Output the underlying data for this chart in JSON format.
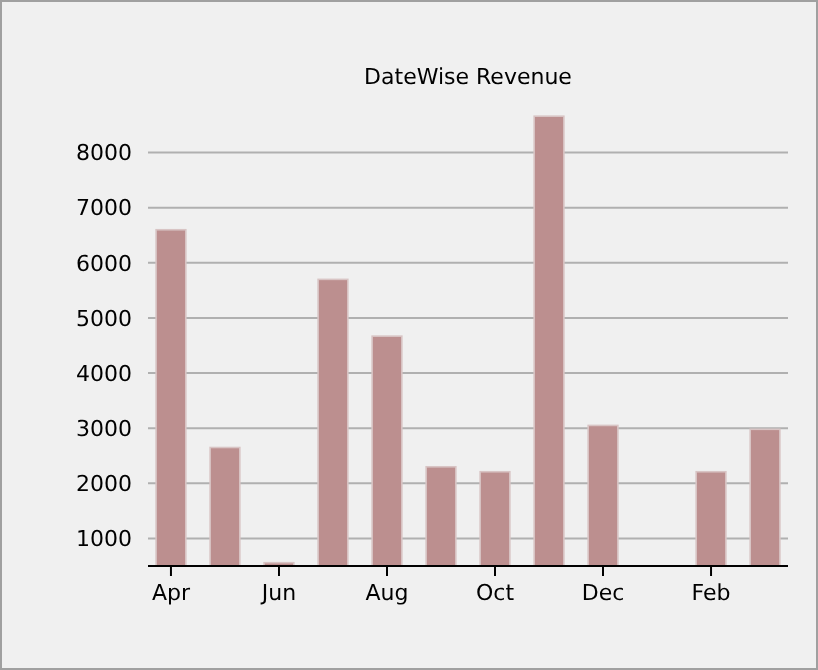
{
  "chart_data": {
    "type": "bar",
    "title": "DateWise Revenue",
    "categories": [
      "Apr",
      null,
      "Jun",
      null,
      "Aug",
      null,
      "Oct",
      null,
      "Dec",
      null,
      "Feb",
      null
    ],
    "values": [
      6600,
      2650,
      560,
      5700,
      4670,
      2300,
      2210,
      8660,
      3050,
      null,
      2210,
      2980
    ],
    "color": "#bc8f8f",
    "ylim": [
      500,
      8700
    ],
    "yticks": [
      1000,
      2000,
      3000,
      4000,
      5000,
      6000,
      7000,
      8000
    ],
    "grid": "y"
  }
}
